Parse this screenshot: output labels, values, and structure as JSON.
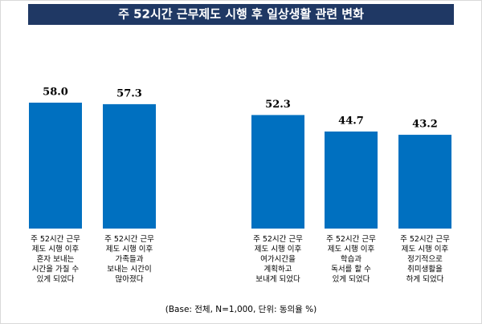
{
  "chart_data": {
    "type": "bar",
    "title": "주 52시간 근무제도 시행 후 일상생활 관련 변화",
    "categories": [
      "주 52시간 근무\n제도 시행 이후\n혼자 보내는\n시간을 가질 수\n있게 되었다",
      "주 52시간 근무\n제도 시행 이후\n가족들과\n보내는 시간이\n많아졌다",
      "주 52시간 근무\n제도 시행 이후\n여가시간을\n계획하고\n보내게 되었다",
      "주 52시간 근무\n제도 시행 이후\n학습과\n독서를 할 수\n있게 되었다",
      "주 52시간 근무\n제도 시행 이후\n정기적으로\n취미생활을\n하게 되었다"
    ],
    "values": [
      58.0,
      57.3,
      52.3,
      44.7,
      43.2
    ],
    "value_labels": [
      "58.0",
      "57.3",
      "52.3",
      "44.7",
      "43.2"
    ],
    "color": "#0070c0",
    "note": "(Base: 전체, N=1,000, 단위: 동의율 %)"
  }
}
